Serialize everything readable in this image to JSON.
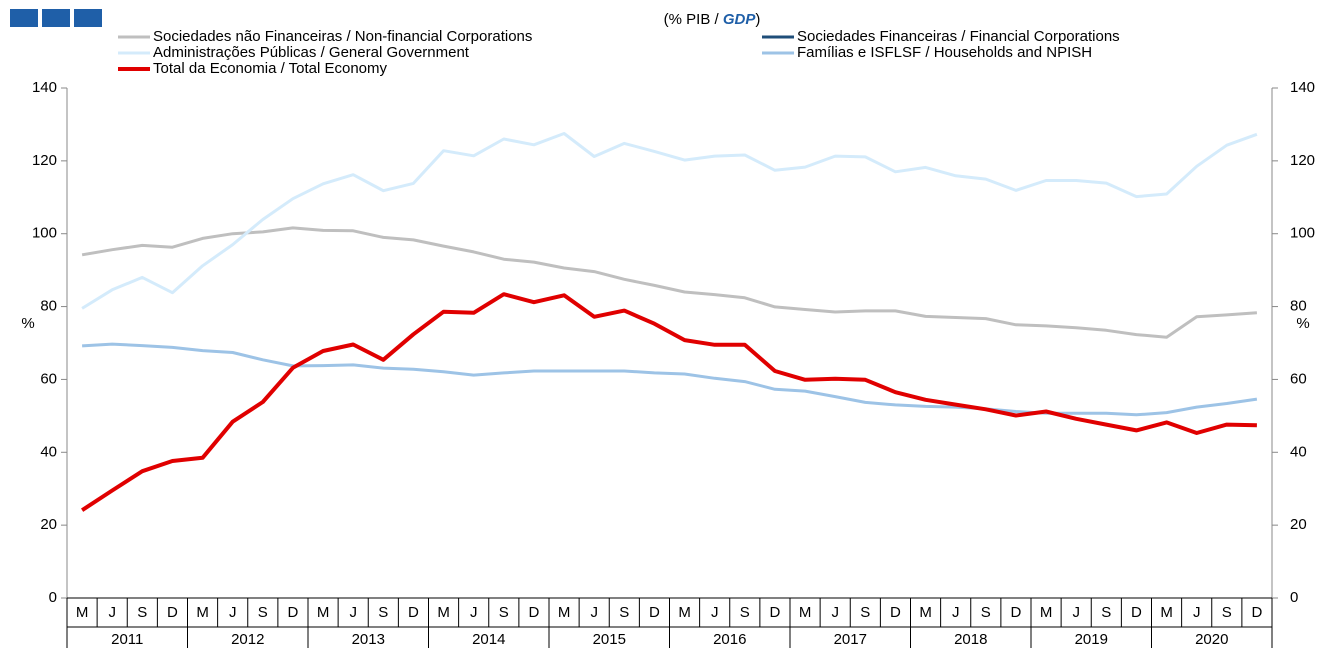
{
  "chart_data": {
    "type": "line",
    "subtitle_parts": [
      "(% PIB / ",
      "GDP",
      ")"
    ],
    "y_label": "%",
    "y2_label": "%",
    "categories": [
      "M",
      "J",
      "S",
      "D",
      "M",
      "J",
      "S",
      "D",
      "M",
      "J",
      "S",
      "D",
      "M",
      "J",
      "S",
      "D",
      "M",
      "J",
      "S",
      "D",
      "M",
      "J",
      "S",
      "D",
      "M",
      "J",
      "S",
      "D",
      "M",
      "J",
      "S",
      "D",
      "M",
      "J",
      "S",
      "D",
      "M",
      "J",
      "S",
      "D"
    ],
    "years": [
      "2011",
      "2012",
      "2013",
      "2014",
      "2015",
      "2016",
      "2017",
      "2018",
      "2019",
      "2020"
    ],
    "ylim": [
      0,
      140
    ],
    "yticks": [
      0,
      20,
      40,
      60,
      80,
      100,
      120,
      140
    ],
    "y2lim": [
      0,
      140
    ],
    "y2ticks": [
      0,
      20,
      40,
      60,
      80,
      100,
      120,
      140
    ],
    "series": [
      {
        "name": "Sociedades não Financeiras / Non-financial Corporations",
        "color": "#bfbfbf",
        "values": [
          94.2,
          95.6,
          96.8,
          96.3,
          98.7,
          100,
          100.5,
          101.6,
          100.9,
          100.8,
          99,
          98.3,
          96.6,
          95,
          93,
          92.2,
          90.6,
          89.6,
          87.5,
          85.8,
          84,
          83.3,
          82.4,
          79.9,
          79.2,
          78.5,
          78.8,
          78.8,
          77.3,
          77,
          76.7,
          75,
          74.7,
          74.2,
          73.5,
          72.3,
          71.6,
          77.2,
          77.7,
          78.3
        ]
      },
      {
        "name": "Sociedades Financeiras / Financial Corporations",
        "color": "#1f4e79",
        "values": [
          null,
          null,
          null,
          null,
          null,
          null,
          null,
          null,
          null,
          null,
          null,
          null,
          null,
          null,
          null,
          null,
          null,
          null,
          null,
          null,
          null,
          null,
          null,
          null,
          null,
          null,
          null,
          null,
          null,
          null,
          null,
          null,
          null,
          null,
          null,
          null,
          null,
          null,
          null,
          null
        ]
      },
      {
        "name": "Administrações Públicas / General Government",
        "color": "#d4ebfb",
        "values": [
          79.5,
          84.6,
          88,
          83.8,
          91.2,
          97,
          103.9,
          109.6,
          113.7,
          116.2,
          111.8,
          113.8,
          122.8,
          121.4,
          126,
          124.4,
          127.5,
          121.2,
          124.8,
          122.6,
          120.2,
          121.3,
          121.6,
          117.4,
          118.3,
          121.3,
          121.1,
          117,
          118.2,
          115.9,
          115,
          111.9,
          114.6,
          114.6,
          113.9,
          110.2,
          110.9,
          118.5,
          124.3,
          127.3
        ]
      },
      {
        "name": "Famílias e ISFLSF / Households and NPISH",
        "color": "#9dc3e6",
        "values": [
          69.2,
          69.7,
          69.3,
          68.8,
          67.9,
          67.4,
          65.4,
          63.7,
          63.8,
          64,
          63.1,
          62.8,
          62.1,
          61.2,
          61.8,
          62.3,
          62.3,
          62.3,
          62.3,
          61.8,
          61.5,
          60.3,
          59.4,
          57.3,
          56.8,
          55.3,
          53.7,
          53,
          52.6,
          52.4,
          51.9,
          51.2,
          50.7,
          50.7,
          50.7,
          50.3,
          50.9,
          52.4,
          53.4,
          54.6
        ]
      },
      {
        "name": "Total da Economia / Total Economy",
        "color": "#e00000",
        "values": [
          24.1,
          29.5,
          34.8,
          37.6,
          38.5,
          48.4,
          53.8,
          63.2,
          67.8,
          69.6,
          65.4,
          72.4,
          78.6,
          78.3,
          83.4,
          81.2,
          83.1,
          77.2,
          78.9,
          75.3,
          70.8,
          69.5,
          69.5,
          62.3,
          59.9,
          60.2,
          59.9,
          56.5,
          54.4,
          53.1,
          51.8,
          50.1,
          51.2,
          49.2,
          47.6,
          46,
          48.2,
          45.3,
          47.6,
          47.4
        ]
      }
    ]
  }
}
